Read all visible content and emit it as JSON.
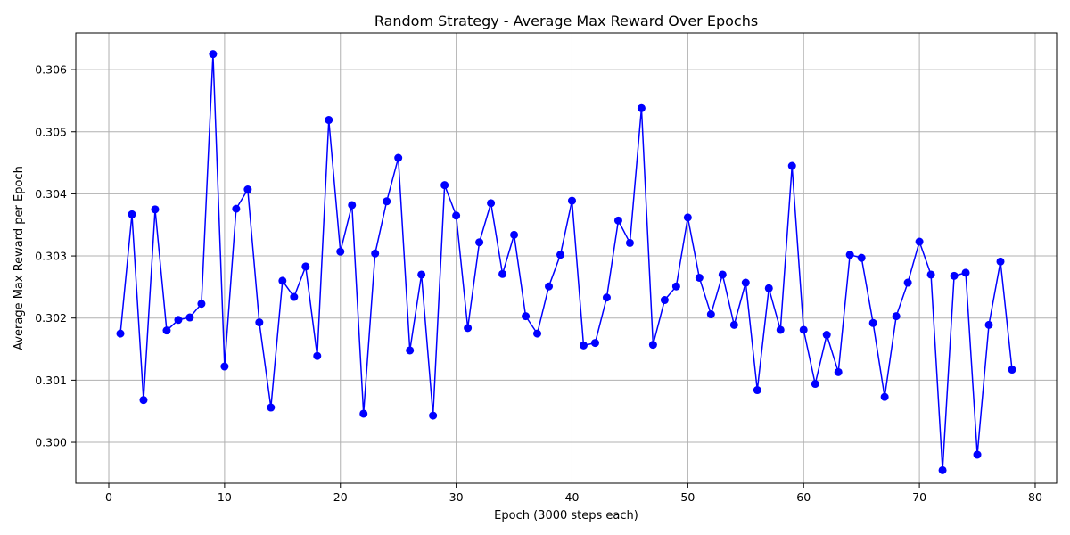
{
  "chart_data": {
    "type": "line",
    "title": "Random Strategy - Average Max Reward Over Epochs",
    "xlabel": "Epoch (3000 steps each)",
    "ylabel": "Average Max Reward per Epoch",
    "xlim": [
      -2.85,
      81.85
    ],
    "ylim": [
      0.29934,
      0.30659
    ],
    "xticks": [
      0,
      10,
      20,
      30,
      40,
      50,
      60,
      70,
      80
    ],
    "xtick_labels": [
      "0",
      "10",
      "20",
      "30",
      "40",
      "50",
      "60",
      "70",
      "80"
    ],
    "yticks": [
      0.3,
      0.301,
      0.302,
      0.303,
      0.304,
      0.305,
      0.306
    ],
    "ytick_labels": [
      "0.300",
      "0.301",
      "0.302",
      "0.303",
      "0.304",
      "0.305",
      "0.306"
    ],
    "grid": true,
    "series": [
      {
        "color": "#0000ff",
        "marker": "circle",
        "x": [
          1,
          2,
          3,
          4,
          5,
          6,
          7,
          8,
          9,
          10,
          11,
          12,
          13,
          14,
          15,
          16,
          17,
          18,
          19,
          20,
          21,
          22,
          23,
          24,
          25,
          26,
          27,
          28,
          29,
          30,
          31,
          32,
          33,
          34,
          35,
          36,
          37,
          38,
          39,
          40,
          41,
          42,
          43,
          44,
          45,
          46,
          47,
          48,
          49,
          50,
          51,
          52,
          53,
          54,
          55,
          56,
          57,
          58,
          59,
          60,
          61,
          62,
          63,
          64,
          65,
          66,
          67,
          68,
          69,
          70,
          71,
          72,
          73,
          74,
          75,
          76,
          77,
          78
        ],
        "values": [
          0.30175,
          0.30367,
          0.30068,
          0.30375,
          0.3018,
          0.30197,
          0.30201,
          0.30223,
          0.30625,
          0.30122,
          0.30376,
          0.30407,
          0.30193,
          0.30056,
          0.3026,
          0.30234,
          0.30283,
          0.30139,
          0.30519,
          0.30307,
          0.30382,
          0.30046,
          0.30304,
          0.30388,
          0.30458,
          0.30148,
          0.3027,
          0.30043,
          0.30414,
          0.30365,
          0.30184,
          0.30322,
          0.30385,
          0.30271,
          0.30334,
          0.30203,
          0.30175,
          0.30251,
          0.30302,
          0.30389,
          0.30156,
          0.3016,
          0.30233,
          0.30357,
          0.30321,
          0.30538,
          0.30157,
          0.30229,
          0.30251,
          0.30362,
          0.30265,
          0.30206,
          0.3027,
          0.30189,
          0.30257,
          0.30084,
          0.30248,
          0.30181,
          0.30445,
          0.30181,
          0.30094,
          0.30173,
          0.30113,
          0.30302,
          0.30297,
          0.30192,
          0.30073,
          0.30203,
          0.30257,
          0.30323,
          0.3027,
          0.29955,
          0.30268,
          0.30273,
          0.2998,
          0.30189,
          0.30291,
          0.30117
        ]
      }
    ]
  }
}
